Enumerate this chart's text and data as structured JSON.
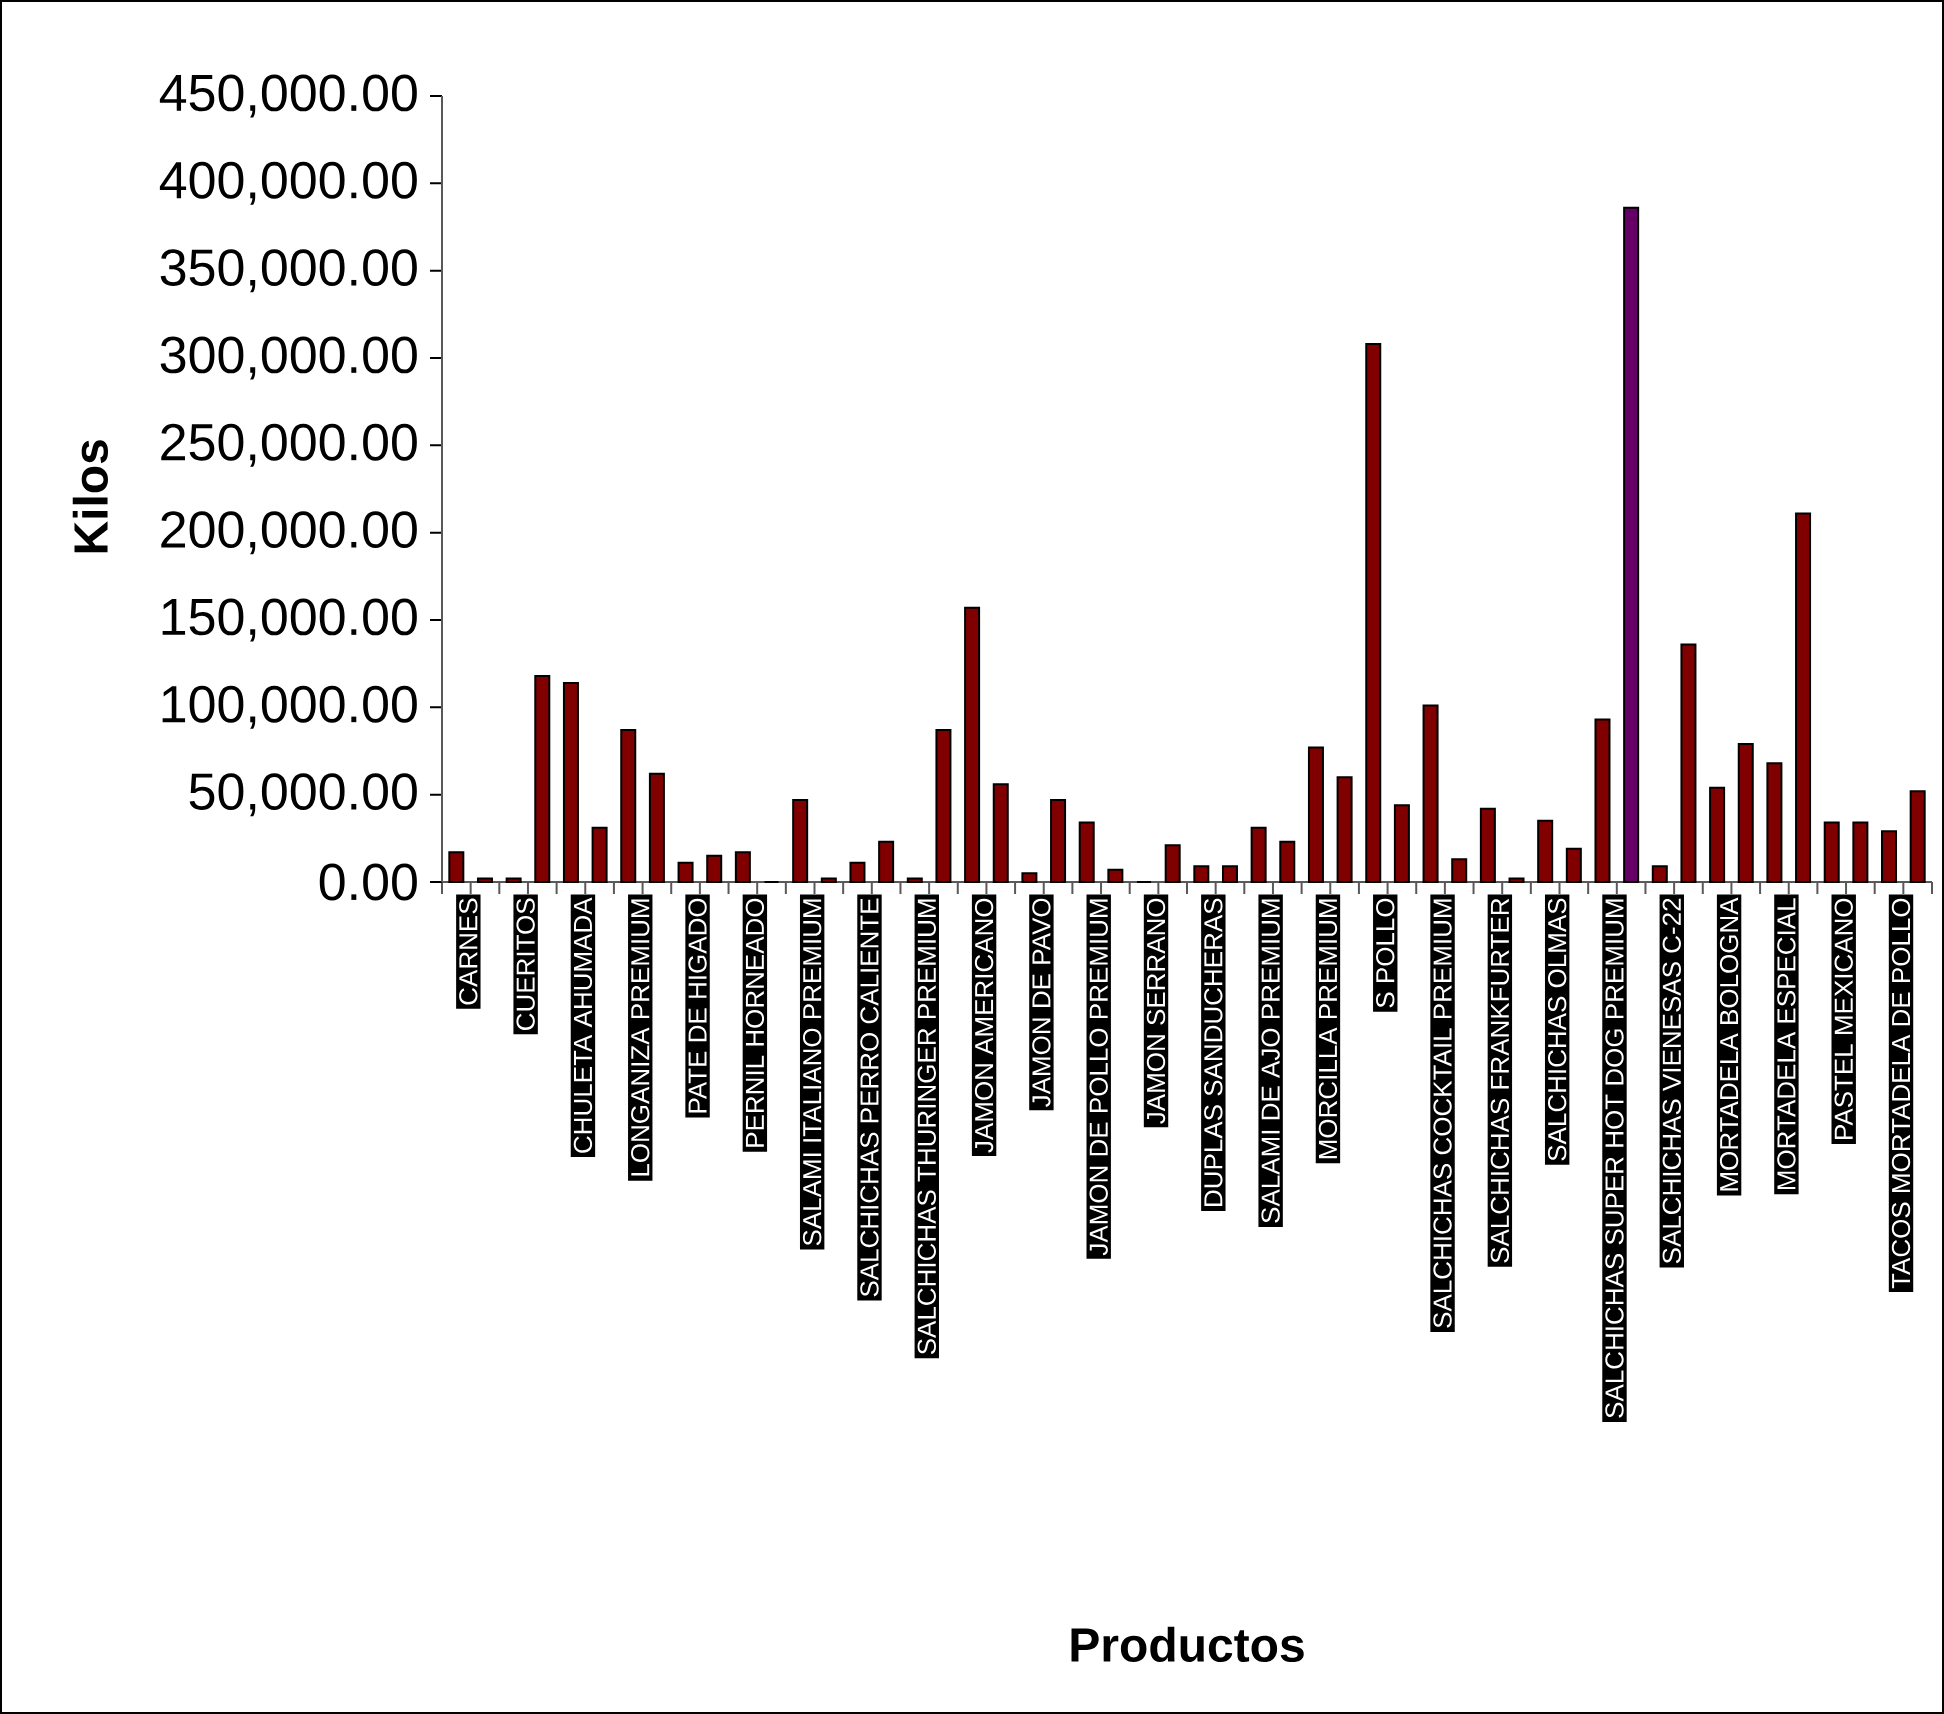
{
  "chart_data": {
    "type": "bar",
    "xlabel": "Productos",
    "ylabel": "Kilos",
    "categories": [
      "CARNES",
      null,
      "CUERITOS",
      null,
      "CHULETA AHUMADA",
      null,
      "LONGANIZA PREMIUM",
      null,
      "PATE DE HIGADO",
      null,
      "PERNIL HORNEADO",
      null,
      "SALAMI ITALIANO PREMIUM",
      null,
      "SALCHICHAS PERRO CALIENTE",
      null,
      "SALCHICHAS THURINGER PREMIUM",
      null,
      "JAMON AMERICANO",
      null,
      "JAMON DE PAVO",
      null,
      "JAMON DE POLLO PREMIUM",
      null,
      "JAMON SERRANO",
      null,
      "DUPLAS SANDUCHERAS",
      null,
      "SALAMI DE AJO PREMIUM",
      null,
      "MORCILLA PREMIUM",
      null,
      "S POLLO",
      null,
      "SALCHICHAS COCKTAIL PREMIUM",
      null,
      "SALCHICHAS FRANKFURTER",
      null,
      "SALCHICHAS OLMAS",
      null,
      "SALCHICHAS SUPER HOT DOG PREMIUM",
      null,
      "SALCHICHAS VIENESAS C-22",
      null,
      "MORTADELA BOLOGNA",
      null,
      "MORTADELA ESPECIAL",
      null,
      "PASTEL MEXICANO",
      null,
      "TACOS MORTADELA DE POLLO",
      null
    ],
    "values": [
      17000,
      2000,
      2000,
      118000,
      114000,
      31000,
      87000,
      62000,
      11000,
      15000,
      17000,
      0,
      47000,
      2000,
      11000,
      23000,
      2000,
      87000,
      157000,
      56000,
      5000,
      47000,
      34000,
      7000,
      0,
      21000,
      9000,
      9000,
      31000,
      23000,
      77000,
      60000,
      308000,
      44000,
      101000,
      13000,
      42000,
      2000,
      35000,
      19000,
      93000,
      386000,
      9000,
      136000,
      54000,
      79000,
      68000,
      211000,
      34000,
      34000,
      29000,
      52000
    ],
    "colors": [
      "#800000",
      "#800000",
      "#800000",
      "#800000",
      "#800000",
      "#800000",
      "#800000",
      "#800000",
      "#800000",
      "#800000",
      "#800000",
      "#800000",
      "#800000",
      "#800000",
      "#800000",
      "#800000",
      "#800000",
      "#800000",
      "#800000",
      "#800000",
      "#800000",
      "#800000",
      "#800000",
      "#800000",
      "#800000",
      "#800000",
      "#800000",
      "#800000",
      "#800000",
      "#800000",
      "#800000",
      "#800000",
      "#800000",
      "#800000",
      "#800000",
      "#800000",
      "#800000",
      "#800000",
      "#800000",
      "#800000",
      "#800000",
      "#660066",
      "#800000",
      "#800000",
      "#800000",
      "#800000",
      "#800000",
      "#800000",
      "#800000",
      "#800000",
      "#800000",
      "#800000"
    ],
    "ylim": [
      0,
      450000
    ],
    "yticks": [
      {
        "value": 0,
        "label": "0.00"
      },
      {
        "value": 50000,
        "label": "50,000.00"
      },
      {
        "value": 100000,
        "label": "100,000.00"
      },
      {
        "value": 150000,
        "label": "150,000.00"
      },
      {
        "value": 200000,
        "label": "200,000.00"
      },
      {
        "value": 250000,
        "label": "250,000.00"
      },
      {
        "value": 300000,
        "label": "300,000.00"
      },
      {
        "value": 350000,
        "label": "350,000.00"
      },
      {
        "value": 400000,
        "label": "400,000.00"
      },
      {
        "value": 450000,
        "label": "450,000.00"
      }
    ]
  }
}
